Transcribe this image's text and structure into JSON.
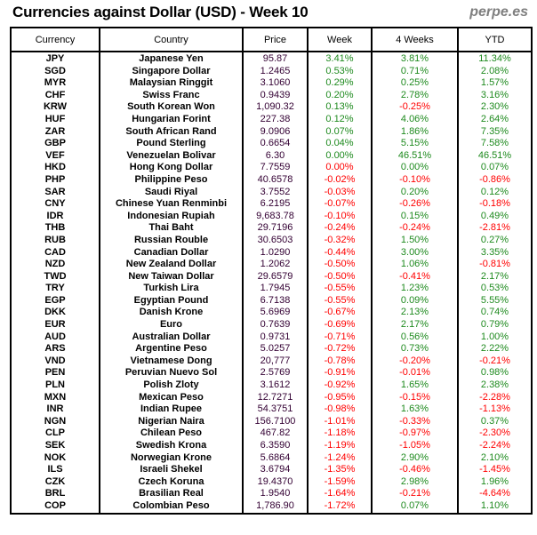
{
  "header": {
    "title": "Currencies against Dollar (USD) - Week 10",
    "brand": "perpe.es"
  },
  "colors": {
    "positive": "#1e8a1e",
    "negative": "#ff0000",
    "price": "#330033"
  },
  "table": {
    "columns": [
      "Currency",
      "Country",
      "Price",
      "Week",
      "4 Weeks",
      "YTD"
    ],
    "rows": [
      {
        "currency": "JPY",
        "country": "Japanese Yen",
        "price": "95.87",
        "week": "3.41%",
        "w4": "3.81%",
        "ytd": "11.34%",
        "weekNeg": false,
        "w4Neg": false,
        "ytdNeg": false
      },
      {
        "currency": "SGD",
        "country": "Singapore Dollar",
        "price": "1.2465",
        "week": "0.53%",
        "w4": "0.71%",
        "ytd": "2.08%",
        "weekNeg": false,
        "w4Neg": false,
        "ytdNeg": false
      },
      {
        "currency": "MYR",
        "country": "Malaysian Ringgit",
        "price": "3.1060",
        "week": "0.29%",
        "w4": "0.25%",
        "ytd": "1.57%",
        "weekNeg": false,
        "w4Neg": false,
        "ytdNeg": false
      },
      {
        "currency": "CHF",
        "country": "Swiss Franc",
        "price": "0.9439",
        "week": "0.20%",
        "w4": "2.78%",
        "ytd": "3.16%",
        "weekNeg": false,
        "w4Neg": false,
        "ytdNeg": false
      },
      {
        "currency": "KRW",
        "country": "South Korean Won",
        "price": "1,090.32",
        "week": "0.13%",
        "w4": "-0.25%",
        "ytd": "2.30%",
        "weekNeg": false,
        "w4Neg": true,
        "ytdNeg": false
      },
      {
        "currency": "HUF",
        "country": "Hungarian Forint",
        "price": "227.38",
        "week": "0.12%",
        "w4": "4.06%",
        "ytd": "2.64%",
        "weekNeg": false,
        "w4Neg": false,
        "ytdNeg": false
      },
      {
        "currency": "ZAR",
        "country": "South African Rand",
        "price": "9.0906",
        "week": "0.07%",
        "w4": "1.86%",
        "ytd": "7.35%",
        "weekNeg": false,
        "w4Neg": false,
        "ytdNeg": false
      },
      {
        "currency": "GBP",
        "country": "Pound Sterling",
        "price": "0.6654",
        "week": "0.04%",
        "w4": "5.15%",
        "ytd": "7.58%",
        "weekNeg": false,
        "w4Neg": false,
        "ytdNeg": false
      },
      {
        "currency": "VEF",
        "country": "Venezuelan Bolivar",
        "price": "6.30",
        "week": "0.00%",
        "w4": "46.51%",
        "ytd": "46.51%",
        "weekNeg": false,
        "w4Neg": false,
        "ytdNeg": false
      },
      {
        "currency": "HKD",
        "country": "Hong Kong Dollar",
        "price": "7.7559",
        "week": "0.00%",
        "w4": "0.00%",
        "ytd": "0.07%",
        "weekNeg": true,
        "w4Neg": false,
        "ytdNeg": false
      },
      {
        "currency": "PHP",
        "country": "Philippine Peso",
        "price": "40.6578",
        "week": "-0.02%",
        "w4": "-0.10%",
        "ytd": "-0.86%",
        "weekNeg": true,
        "w4Neg": true,
        "ytdNeg": true
      },
      {
        "currency": "SAR",
        "country": "Saudi Riyal",
        "price": "3.7552",
        "week": "-0.03%",
        "w4": "0.20%",
        "ytd": "0.12%",
        "weekNeg": true,
        "w4Neg": false,
        "ytdNeg": false
      },
      {
        "currency": "CNY",
        "country": "Chinese Yuan Renminbi",
        "price": "6.2195",
        "week": "-0.07%",
        "w4": "-0.26%",
        "ytd": "-0.18%",
        "weekNeg": true,
        "w4Neg": true,
        "ytdNeg": true
      },
      {
        "currency": "IDR",
        "country": "Indonesian Rupiah",
        "price": "9,683.78",
        "week": "-0.10%",
        "w4": "0.15%",
        "ytd": "0.49%",
        "weekNeg": true,
        "w4Neg": false,
        "ytdNeg": false
      },
      {
        "currency": "THB",
        "country": "Thai Baht",
        "price": "29.7196",
        "week": "-0.24%",
        "w4": "-0.24%",
        "ytd": "-2.81%",
        "weekNeg": true,
        "w4Neg": true,
        "ytdNeg": true
      },
      {
        "currency": "RUB",
        "country": "Russian Rouble",
        "price": "30.6503",
        "week": "-0.32%",
        "w4": "1.50%",
        "ytd": "0.27%",
        "weekNeg": true,
        "w4Neg": false,
        "ytdNeg": false
      },
      {
        "currency": "CAD",
        "country": "Canadian Dollar",
        "price": "1.0290",
        "week": "-0.44%",
        "w4": "3.00%",
        "ytd": "3.35%",
        "weekNeg": true,
        "w4Neg": false,
        "ytdNeg": false
      },
      {
        "currency": "NZD",
        "country": "New Zealand Dollar",
        "price": "1.2062",
        "week": "-0.50%",
        "w4": "1.06%",
        "ytd": "-0.81%",
        "weekNeg": true,
        "w4Neg": false,
        "ytdNeg": true
      },
      {
        "currency": "TWD",
        "country": "New Taiwan Dollar",
        "price": "29.6579",
        "week": "-0.50%",
        "w4": "-0.41%",
        "ytd": "2.17%",
        "weekNeg": true,
        "w4Neg": true,
        "ytdNeg": false
      },
      {
        "currency": "TRY",
        "country": "Turkish Lira",
        "price": "1.7945",
        "week": "-0.55%",
        "w4": "1.23%",
        "ytd": "0.53%",
        "weekNeg": true,
        "w4Neg": false,
        "ytdNeg": false
      },
      {
        "currency": "EGP",
        "country": "Egyptian Pound",
        "price": "6.7138",
        "week": "-0.55%",
        "w4": "0.09%",
        "ytd": "5.55%",
        "weekNeg": true,
        "w4Neg": false,
        "ytdNeg": false
      },
      {
        "currency": "DKK",
        "country": "Danish Krone",
        "price": "5.6969",
        "week": "-0.67%",
        "w4": "2.13%",
        "ytd": "0.74%",
        "weekNeg": true,
        "w4Neg": false,
        "ytdNeg": false
      },
      {
        "currency": "EUR",
        "country": "Euro",
        "price": "0.7639",
        "week": "-0.69%",
        "w4": "2.17%",
        "ytd": "0.79%",
        "weekNeg": true,
        "w4Neg": false,
        "ytdNeg": false
      },
      {
        "currency": "AUD",
        "country": "Australian Dollar",
        "price": "0.9731",
        "week": "-0.71%",
        "w4": "0.56%",
        "ytd": "1.00%",
        "weekNeg": true,
        "w4Neg": false,
        "ytdNeg": false
      },
      {
        "currency": "ARS",
        "country": "Argentine Peso",
        "price": "5.0257",
        "week": "-0.72%",
        "w4": "0.73%",
        "ytd": "2.22%",
        "weekNeg": true,
        "w4Neg": false,
        "ytdNeg": false
      },
      {
        "currency": "VND",
        "country": "Vietnamese Dong",
        "price": "20,777",
        "week": "-0.78%",
        "w4": "-0.20%",
        "ytd": "-0.21%",
        "weekNeg": true,
        "w4Neg": true,
        "ytdNeg": true
      },
      {
        "currency": "PEN",
        "country": "Peruvian Nuevo Sol",
        "price": "2.5769",
        "week": "-0.91%",
        "w4": "-0.01%",
        "ytd": "0.98%",
        "weekNeg": true,
        "w4Neg": true,
        "ytdNeg": false
      },
      {
        "currency": "PLN",
        "country": "Polish Zloty",
        "price": "3.1612",
        "week": "-0.92%",
        "w4": "1.65%",
        "ytd": "2.38%",
        "weekNeg": true,
        "w4Neg": false,
        "ytdNeg": false
      },
      {
        "currency": "MXN",
        "country": "Mexican Peso",
        "price": "12.7271",
        "week": "-0.95%",
        "w4": "-0.15%",
        "ytd": "-2.28%",
        "weekNeg": true,
        "w4Neg": true,
        "ytdNeg": true
      },
      {
        "currency": "INR",
        "country": "Indian Rupee",
        "price": "54.3751",
        "week": "-0.98%",
        "w4": "1.63%",
        "ytd": "-1.13%",
        "weekNeg": true,
        "w4Neg": false,
        "ytdNeg": true
      },
      {
        "currency": "NGN",
        "country": "Nigerian Naira",
        "price": "156.7100",
        "week": "-1.01%",
        "w4": "-0.33%",
        "ytd": "0.37%",
        "weekNeg": true,
        "w4Neg": true,
        "ytdNeg": false
      },
      {
        "currency": "CLP",
        "country": "Chilean Peso",
        "price": "467.82",
        "week": "-1.18%",
        "w4": "-0.97%",
        "ytd": "-2.30%",
        "weekNeg": true,
        "w4Neg": true,
        "ytdNeg": true
      },
      {
        "currency": "SEK",
        "country": "Swedish Krona",
        "price": "6.3590",
        "week": "-1.19%",
        "w4": "-1.05%",
        "ytd": "-2.24%",
        "weekNeg": true,
        "w4Neg": true,
        "ytdNeg": true
      },
      {
        "currency": "NOK",
        "country": "Norwegian Krone",
        "price": "5.6864",
        "week": "-1.24%",
        "w4": "2.90%",
        "ytd": "2.10%",
        "weekNeg": true,
        "w4Neg": false,
        "ytdNeg": false
      },
      {
        "currency": "ILS",
        "country": "Israeli Shekel",
        "price": "3.6794",
        "week": "-1.35%",
        "w4": "-0.46%",
        "ytd": "-1.45%",
        "weekNeg": true,
        "w4Neg": true,
        "ytdNeg": true
      },
      {
        "currency": "CZK",
        "country": "Czech Koruna",
        "price": "19.4370",
        "week": "-1.59%",
        "w4": "2.98%",
        "ytd": "1.96%",
        "weekNeg": true,
        "w4Neg": false,
        "ytdNeg": false
      },
      {
        "currency": "BRL",
        "country": "Brasilian Real",
        "price": "1.9540",
        "week": "-1.64%",
        "w4": "-0.21%",
        "ytd": "-4.64%",
        "weekNeg": true,
        "w4Neg": true,
        "ytdNeg": true
      },
      {
        "currency": "COP",
        "country": "Colombian Peso",
        "price": "1,786.90",
        "week": "-1.72%",
        "w4": "0.07%",
        "ytd": "1.10%",
        "weekNeg": true,
        "w4Neg": false,
        "ytdNeg": false
      }
    ]
  }
}
